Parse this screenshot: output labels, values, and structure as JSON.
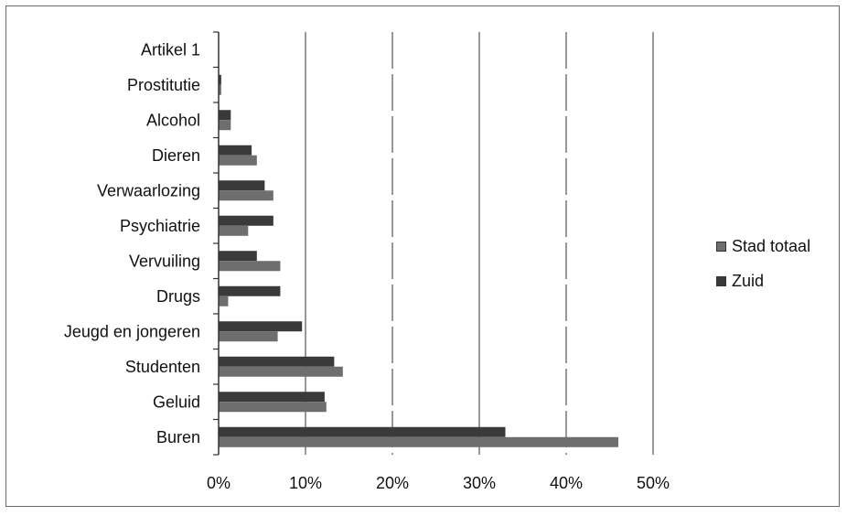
{
  "chart_data": {
    "type": "bar",
    "orientation": "horizontal",
    "title": "",
    "xlabel": "",
    "ylabel": "",
    "categories": [
      "Artikel 1",
      "Prostitutie",
      "Alcohol",
      "Dieren",
      "Verwaarlozing",
      "Psychiatrie",
      "Vervuiling",
      "Drugs",
      "Jeugd en jongeren",
      "Studenten",
      "Geluid",
      "Buren"
    ],
    "series": [
      {
        "name": "Zuid",
        "color": "#3a3a3a",
        "values": [
          0,
          0.3,
          1.4,
          3.8,
          5.3,
          6.3,
          4.4,
          7.1,
          9.6,
          13.3,
          12.2,
          33
        ]
      },
      {
        "name": "Stad totaal",
        "color": "#6e6e6e",
        "values": [
          0,
          0.3,
          1.4,
          4.4,
          6.3,
          3.4,
          7.1,
          1.1,
          6.8,
          14.3,
          12.4,
          46
        ]
      }
    ],
    "xlim": [
      0,
      50
    ],
    "x_ticks": [
      "0%",
      "10%",
      "20%",
      "30%",
      "40%",
      "50%"
    ],
    "gridlines": "vertical",
    "legend": "right"
  }
}
